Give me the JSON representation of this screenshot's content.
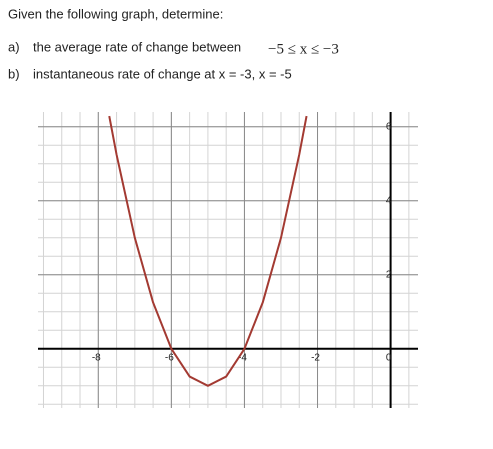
{
  "header": {
    "title": "Given the following graph, determine:"
  },
  "items": [
    {
      "label": "a)",
      "text": "the average rate of change between",
      "math": "−5 ≤ x ≤ −3"
    },
    {
      "label": "b)",
      "text": "instantaneous rate of change at x = -3, x = -5"
    }
  ],
  "chart_data": {
    "type": "line",
    "x": [
      -7.7,
      -7.5,
      -7,
      -6.5,
      -6,
      -5.5,
      -5,
      -4.5,
      -4,
      -3.5,
      -3,
      -2.5,
      -2.3
    ],
    "series": [
      {
        "color": "#a33a32",
        "values": [
          6.29,
          5.25,
          3,
          1.25,
          0,
          -0.75,
          -1,
          -0.75,
          0,
          1.25,
          3,
          5.25,
          6.29
        ]
      }
    ],
    "xlim": [
      -9.65,
      0.75
    ],
    "ylim": [
      -1.6,
      6.4
    ],
    "xticks": [
      -8,
      -6,
      -4,
      -2,
      0
    ],
    "yticks": [
      2,
      4,
      6
    ],
    "grid": true,
    "minor_grid": 0.5
  }
}
